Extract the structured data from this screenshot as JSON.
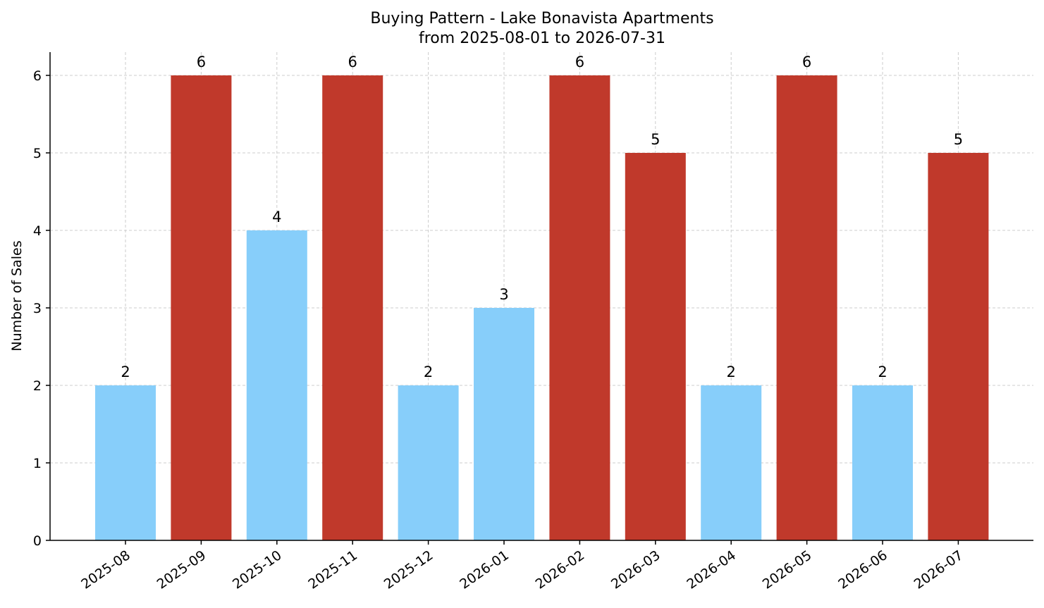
{
  "chart_data": {
    "type": "bar",
    "title": "Buying Pattern - Lake Bonavista Apartments",
    "subtitle": "from 2025-08-01 to 2026-07-31",
    "xlabel": "",
    "ylabel": "Number of Sales",
    "ylim": [
      0,
      6.3
    ],
    "yticks": [
      0,
      1,
      2,
      3,
      4,
      5,
      6
    ],
    "grid": true,
    "categories": [
      "2025-08",
      "2025-09",
      "2025-10",
      "2025-11",
      "2025-12",
      "2026-01",
      "2026-02",
      "2026-03",
      "2026-04",
      "2026-05",
      "2026-06",
      "2026-07"
    ],
    "values": [
      2,
      6,
      4,
      6,
      2,
      3,
      6,
      5,
      2,
      6,
      2,
      5
    ],
    "bar_colors": [
      "#87CEFA",
      "#C0392B",
      "#87CEFA",
      "#C0392B",
      "#87CEFA",
      "#87CEFA",
      "#C0392B",
      "#C0392B",
      "#87CEFA",
      "#C0392B",
      "#87CEFA",
      "#C0392B"
    ],
    "data_labels": [
      "2",
      "6",
      "4",
      "6",
      "2",
      "3",
      "6",
      "5",
      "2",
      "6",
      "2",
      "5"
    ]
  }
}
